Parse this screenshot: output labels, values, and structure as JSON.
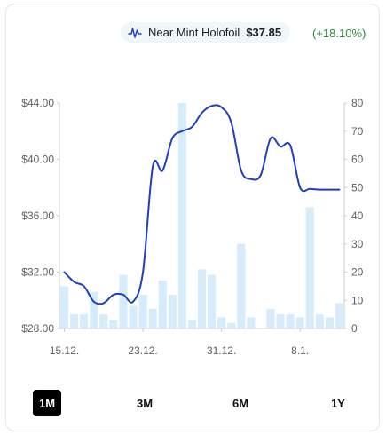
{
  "legend": {
    "series_name": "Near Mint Holofoil",
    "price": "$37.85",
    "change": "(+18.10%)",
    "icon": "line-chart-icon"
  },
  "colors": {
    "line": "#1f3fbf",
    "bar": "#d6ecfa",
    "positive": "#2e8b3a",
    "grid": "#e9ecef"
  },
  "range_buttons": [
    {
      "label": "1M",
      "active": true
    },
    {
      "label": "3M",
      "active": false
    },
    {
      "label": "6M",
      "active": false
    },
    {
      "label": "1Y",
      "active": false
    }
  ],
  "chart_data": {
    "type": "line",
    "x": [
      "15.12.",
      "16.12.",
      "17.12.",
      "18.12.",
      "19.12.",
      "20.12.",
      "21.12.",
      "22.12.",
      "23.12.",
      "24.12.",
      "25.12.",
      "26.12.",
      "27.12.",
      "28.12.",
      "29.12.",
      "30.12.",
      "31.12.",
      "1.1.",
      "2.1.",
      "3.1.",
      "4.1.",
      "5.1.",
      "6.1.",
      "7.1.",
      "8.1.",
      "9.1.",
      "10.1.",
      "11.1.",
      "12.1."
    ],
    "x_tick_labels": [
      "15.12.",
      "23.12.",
      "31.12.",
      "8.1."
    ],
    "y_left_ticks": [
      "$28.00",
      "$32.00",
      "$36.00",
      "$40.00",
      "$44.00"
    ],
    "y_right_ticks": [
      "0",
      "10",
      "20",
      "30",
      "40",
      "50",
      "60",
      "70",
      "80"
    ],
    "ylim_left": [
      28,
      44
    ],
    "ylim_right": [
      0,
      80
    ],
    "series": [
      {
        "type": "line",
        "axis": "left",
        "values": [
          32.0,
          31.3,
          31.0,
          29.9,
          29.8,
          30.4,
          30.4,
          29.9,
          32.0,
          39.5,
          39.2,
          41.5,
          42.0,
          42.3,
          43.3,
          43.8,
          43.7,
          42.6,
          39.2,
          38.6,
          38.9,
          41.5,
          40.9,
          41.0,
          38.0,
          37.9,
          37.85,
          37.85,
          37.85
        ],
        "x_index": [
          0,
          1,
          2,
          3,
          4,
          5,
          6,
          7,
          8,
          9,
          10,
          11,
          12,
          13,
          14,
          15,
          16,
          17,
          18,
          19,
          20,
          21,
          22,
          23,
          24,
          25,
          26,
          27,
          28
        ]
      },
      {
        "type": "bar",
        "axis": "right",
        "values": [
          15,
          5,
          5,
          13,
          5,
          3,
          19,
          8,
          12,
          7,
          17,
          12,
          80,
          3,
          21,
          19,
          4,
          2,
          30,
          4,
          0,
          7,
          5,
          5,
          4,
          43,
          5,
          4,
          9
        ]
      }
    ],
    "grid": false,
    "legend_position": "top-right"
  }
}
